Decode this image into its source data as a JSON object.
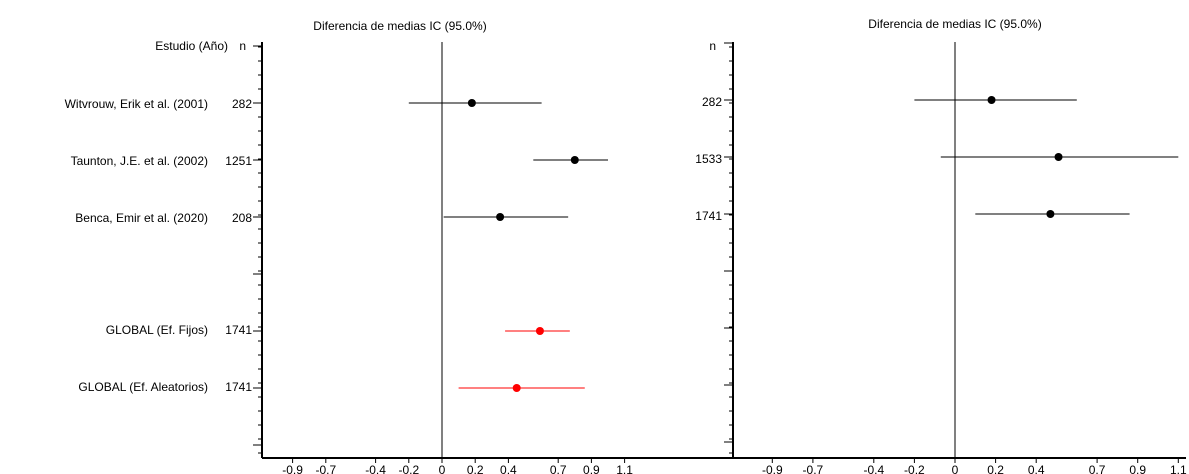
{
  "chart_data": [
    {
      "type": "forest",
      "title": "Diferencia de medias IC  (95.0%)",
      "header": {
        "study": "Estudio  (Año)",
        "n": "n"
      },
      "x_ticks": [
        "-0.9",
        "-0.7",
        "-0.4",
        "-0.2",
        "0",
        "0.2",
        "0.4",
        "0.7",
        "0.9",
        "1.1"
      ],
      "xlim": [
        -1.1,
        1.1
      ],
      "reference_line": 0,
      "rows": [
        {
          "label": "Witvrouw, Erik et al.  (2001)",
          "n": "282",
          "estimate": 0.18,
          "lower": -0.2,
          "upper": 0.6,
          "color": "#000000",
          "slot": 1
        },
        {
          "label": "Taunton, J.E. et al.  (2002)",
          "n": "1251",
          "estimate": 0.8,
          "lower": 0.55,
          "upper": 1.0,
          "color": "#000000",
          "slot": 2
        },
        {
          "label": "Benca, Emir et al.  (2020)",
          "n": "208",
          "estimate": 0.35,
          "lower": 0.01,
          "upper": 0.76,
          "color": "#000000",
          "slot": 3
        },
        {
          "label": "GLOBAL (Ef. Fijos)",
          "n": "1741",
          "estimate": 0.59,
          "lower": 0.38,
          "upper": 0.77,
          "color": "#ff0000",
          "slot": 5
        },
        {
          "label": "GLOBAL (Ef. Aleatorios)",
          "n": "1741",
          "estimate": 0.45,
          "lower": 0.1,
          "upper": 0.86,
          "color": "#ff0000",
          "slot": 6
        }
      ]
    },
    {
      "type": "forest",
      "title": "Diferencia de medias IC  (95.0%)",
      "header": {
        "n": "n"
      },
      "x_ticks": [
        "-0.9",
        "-0.7",
        "-0.4",
        "-0.2",
        "0",
        "0.2",
        "0.4",
        "0.7",
        "0.9",
        "1.1"
      ],
      "xlim": [
        -1.1,
        1.1
      ],
      "reference_line": 0,
      "rows": [
        {
          "n": "282",
          "estimate": 0.18,
          "lower": -0.2,
          "upper": 0.6,
          "color": "#000000",
          "slot": 1
        },
        {
          "n": "1533",
          "estimate": 0.51,
          "lower": -0.07,
          "upper": 1.1,
          "color": "#000000",
          "slot": 2
        },
        {
          "n": "1741",
          "estimate": 0.47,
          "lower": 0.1,
          "upper": 0.86,
          "color": "#000000",
          "slot": 3
        }
      ]
    }
  ]
}
